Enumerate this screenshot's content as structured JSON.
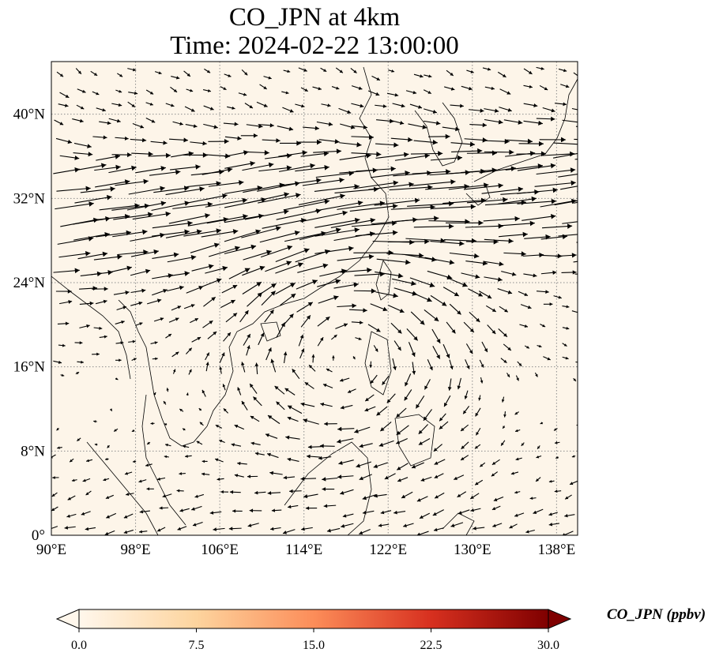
{
  "title": {
    "line1": "CO_JPN at 4km",
    "line2": "Time: 2024-02-22 13:00:00"
  },
  "map": {
    "extent": {
      "lon_min": 90,
      "lon_max": 140,
      "lat_min": 0,
      "lat_max": 45
    },
    "background_color": "#fdf5e9",
    "coastline_color": "#000000",
    "gridline_color": "#8c8c8c",
    "gridline_style": "dotted",
    "lon_ticks": [
      {
        "value": 90,
        "label": "90°E"
      },
      {
        "value": 98,
        "label": "98°E"
      },
      {
        "value": 106,
        "label": "106°E"
      },
      {
        "value": 114,
        "label": "114°E"
      },
      {
        "value": 122,
        "label": "122°E"
      },
      {
        "value": 130,
        "label": "130°E"
      },
      {
        "value": 138,
        "label": "138°E"
      }
    ],
    "lat_ticks": [
      {
        "value": 0,
        "label": "0°"
      },
      {
        "value": 8,
        "label": "8°N"
      },
      {
        "value": 16,
        "label": "16°N"
      },
      {
        "value": 24,
        "label": "24°N"
      },
      {
        "value": 32,
        "label": "32°N"
      },
      {
        "value": 40,
        "label": "40°N"
      }
    ],
    "wind_vectors": "quiver field (black arrows): strong westerly jet between 24°N and 38°N, anticyclonic circulation near 18°N 118°E, weaker easterly/northeasterly flow south of 16°N"
  },
  "colorbar": {
    "label": "CO_JPN (ppbv)",
    "min": 0.0,
    "max": 30.0,
    "extend": "both",
    "colormap": "OrRd",
    "colors": [
      "#fff7ec",
      "#fdd49e",
      "#fc8d59",
      "#d7301f",
      "#7f0000"
    ],
    "ticks": [
      {
        "value": 0.0,
        "label": "0.0"
      },
      {
        "value": 7.5,
        "label": "7.5"
      },
      {
        "value": 15.0,
        "label": "15.0"
      },
      {
        "value": 22.5,
        "label": "22.5"
      },
      {
        "value": 30.0,
        "label": "30.0"
      }
    ]
  }
}
